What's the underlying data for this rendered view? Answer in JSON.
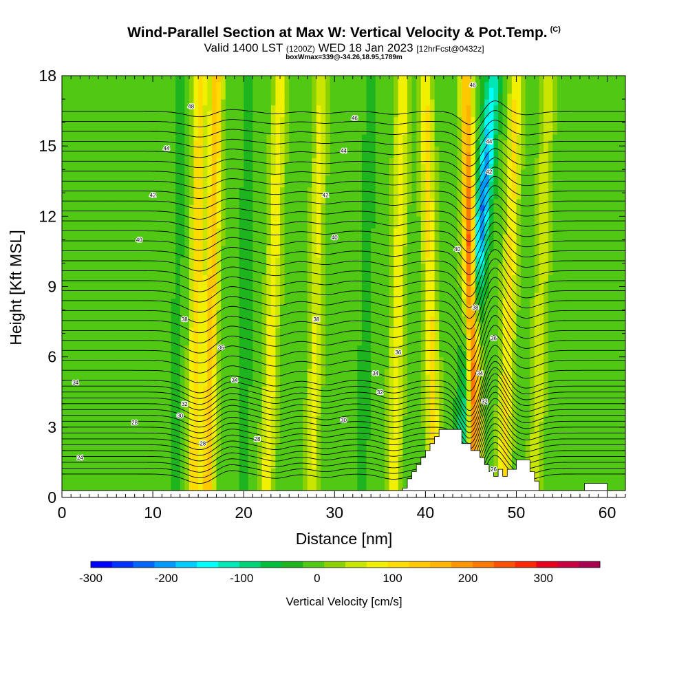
{
  "header": {
    "title": "Wind-Parallel Section at Max W: Vertical Velocity & Pot.Temp.",
    "copyright": "(C)",
    "valid_main": "Valid 1400 LST",
    "valid_utc": "(1200Z)",
    "valid_date": "WED 18 Jan 2023",
    "forecast": "[12hrFcst@0432z]",
    "box_info": "boxWmax=339@-34.26,18.95,1789m"
  },
  "chart_data": {
    "type": "heatmap",
    "xlabel": "Distance [nm]",
    "ylabel": "Height [Kft MSL]",
    "xlim": [
      0,
      62
    ],
    "ylim": [
      0,
      18
    ],
    "x_ticks": [
      0,
      10,
      20,
      30,
      40,
      50,
      60
    ],
    "y_ticks": [
      0,
      3,
      6,
      9,
      12,
      15,
      18
    ],
    "colorbar": {
      "label": "Vertical Velocity [cm/s]",
      "range": [
        -300,
        375
      ],
      "ticks": [
        -300,
        -200,
        -100,
        0,
        100,
        200,
        300
      ],
      "colors": [
        "#0000ff",
        "#0033ff",
        "#0066ff",
        "#0099ff",
        "#00ccff",
        "#00ffff",
        "#00e6b4",
        "#00d278",
        "#00be3c",
        "#1eb41e",
        "#50c814",
        "#8cd200",
        "#c8e600",
        "#f0f000",
        "#ffdc00",
        "#ffc800",
        "#ffb400",
        "#ff9600",
        "#ff7800",
        "#ff5000",
        "#ff2800",
        "#e6001e",
        "#c8003c",
        "#aa0050"
      ]
    },
    "vertical_velocity_bands": [
      {
        "x_bottom": 16.0,
        "x_top": 17.0,
        "peak_cm_s": 140,
        "sign": "up"
      },
      {
        "x_bottom": 14.5,
        "x_top": 15.2,
        "peak_cm_s": 120,
        "sign": "up"
      },
      {
        "x_bottom": 22.5,
        "x_top": 24.0,
        "peak_cm_s": 90,
        "sign": "up"
      },
      {
        "x_bottom": 27.5,
        "x_top": 28.5,
        "peak_cm_s": 70,
        "sign": "up"
      },
      {
        "x_bottom": 36.5,
        "x_top": 37.5,
        "peak_cm_s": 90,
        "sign": "up"
      },
      {
        "x_bottom": 41.0,
        "x_top": 40.0,
        "peak_cm_s": 100,
        "sign": "up"
      },
      {
        "x_bottom": 45.5,
        "x_top": 44.5,
        "peak_cm_s": 339,
        "sign": "up"
      },
      {
        "x_bottom": 43.5,
        "x_top": 47.5,
        "peak_cm_s": -220,
        "sign": "down"
      },
      {
        "x_bottom": 48.5,
        "x_top": 50.0,
        "peak_cm_s": 100,
        "sign": "up"
      },
      {
        "x_bottom": 52.0,
        "x_top": 53.5,
        "peak_cm_s": 60,
        "sign": "up"
      },
      {
        "x_bottom": 33.0,
        "x_top": 34.0,
        "peak_cm_s": -30,
        "sign": "down"
      },
      {
        "x_bottom": 20.0,
        "x_top": 20.5,
        "peak_cm_s": -30,
        "sign": "down"
      },
      {
        "x_bottom": 12.5,
        "x_top": 13.0,
        "peak_cm_s": -25,
        "sign": "down"
      }
    ],
    "terrain": [
      [
        37.5,
        0.0
      ],
      [
        37.5,
        0.4
      ],
      [
        38.0,
        0.4
      ],
      [
        38.0,
        0.8
      ],
      [
        38.5,
        0.8
      ],
      [
        38.5,
        1.1
      ],
      [
        39.0,
        1.1
      ],
      [
        39.0,
        1.4
      ],
      [
        39.5,
        1.4
      ],
      [
        39.5,
        1.7
      ],
      [
        40.0,
        1.7
      ],
      [
        40.0,
        2.0
      ],
      [
        40.5,
        2.0
      ],
      [
        40.5,
        2.3
      ],
      [
        41.0,
        2.3
      ],
      [
        41.0,
        2.6
      ],
      [
        41.5,
        2.6
      ],
      [
        41.5,
        2.9
      ],
      [
        44.0,
        2.9
      ],
      [
        44.0,
        2.3
      ],
      [
        45.0,
        2.3
      ],
      [
        45.0,
        2.0
      ],
      [
        46.0,
        2.0
      ],
      [
        46.0,
        1.7
      ],
      [
        46.5,
        1.7
      ],
      [
        46.5,
        1.4
      ],
      [
        47.0,
        1.4
      ],
      [
        47.0,
        1.1
      ],
      [
        47.5,
        1.1
      ],
      [
        47.5,
        0.9
      ],
      [
        48.0,
        0.9
      ],
      [
        48.0,
        1.2
      ],
      [
        48.5,
        1.2
      ],
      [
        48.5,
        0.9
      ],
      [
        49.0,
        0.9
      ],
      [
        49.0,
        1.2
      ],
      [
        50.0,
        1.2
      ],
      [
        50.0,
        1.6
      ],
      [
        51.5,
        1.6
      ],
      [
        51.5,
        1.1
      ],
      [
        52.0,
        1.1
      ],
      [
        52.0,
        0.7
      ],
      [
        52.5,
        0.7
      ],
      [
        52.5,
        0.3
      ],
      [
        53.0,
        0.3
      ],
      [
        53.0,
        0.0
      ],
      [
        57.5,
        0.0
      ],
      [
        57.5,
        0.6
      ],
      [
        60.0,
        0.6
      ],
      [
        60.0,
        0.3
      ],
      [
        60.5,
        0.3
      ],
      [
        60.5,
        0.0
      ]
    ],
    "theta_contours": {
      "base": 26,
      "step": 0.5,
      "count": 44,
      "waves": [
        {
          "x": 15.5,
          "amp": -0.6,
          "width": 2.5
        },
        {
          "x": 18.0,
          "amp": 0.35,
          "width": 2.0
        },
        {
          "x": 23.5,
          "amp": -0.25,
          "width": 1.8
        },
        {
          "x": 29.0,
          "amp": -0.2,
          "width": 1.8
        },
        {
          "x": 36.5,
          "amp": -0.3,
          "width": 2.0
        },
        {
          "x": 45.0,
          "amp": -1.4,
          "width": 1.6
        },
        {
          "x": 47.5,
          "amp": 1.2,
          "width": 1.6
        },
        {
          "x": 51.0,
          "amp": -0.35,
          "width": 2.0
        }
      ]
    },
    "theta_labels": [
      {
        "text": "48",
        "x": 14.2,
        "y": 16.7
      },
      {
        "text": "46",
        "x": 32.2,
        "y": 16.2
      },
      {
        "text": "46",
        "x": 45.2,
        "y": 17.6
      },
      {
        "text": "44",
        "x": 11.5,
        "y": 14.9
      },
      {
        "text": "44",
        "x": 31.0,
        "y": 14.8
      },
      {
        "text": "44",
        "x": 47.0,
        "y": 15.2
      },
      {
        "text": "42",
        "x": 10.0,
        "y": 12.9
      },
      {
        "text": "42",
        "x": 29.0,
        "y": 12.9
      },
      {
        "text": "42",
        "x": 47.0,
        "y": 13.9
      },
      {
        "text": "40",
        "x": 8.5,
        "y": 11.0
      },
      {
        "text": "40",
        "x": 30.0,
        "y": 11.1
      },
      {
        "text": "40",
        "x": 43.5,
        "y": 10.6
      },
      {
        "text": "38",
        "x": 13.5,
        "y": 7.6
      },
      {
        "text": "38",
        "x": 28.0,
        "y": 7.6
      },
      {
        "text": "38",
        "x": 45.5,
        "y": 8.1
      },
      {
        "text": "36",
        "x": 17.5,
        "y": 6.4
      },
      {
        "text": "36",
        "x": 37.0,
        "y": 6.2
      },
      {
        "text": "36",
        "x": 47.5,
        "y": 6.8
      },
      {
        "text": "34",
        "x": 1.5,
        "y": 4.9
      },
      {
        "text": "34",
        "x": 19.0,
        "y": 5.0
      },
      {
        "text": "34",
        "x": 34.5,
        "y": 5.3
      },
      {
        "text": "34",
        "x": 46.0,
        "y": 5.3
      },
      {
        "text": "32",
        "x": 13.5,
        "y": 4.0
      },
      {
        "text": "32",
        "x": 35.0,
        "y": 4.5
      },
      {
        "text": "32",
        "x": 46.5,
        "y": 4.1
      },
      {
        "text": "30",
        "x": 13.0,
        "y": 3.5
      },
      {
        "text": "30",
        "x": 31.0,
        "y": 3.3
      },
      {
        "text": "28",
        "x": 8.0,
        "y": 3.2
      },
      {
        "text": "28",
        "x": 15.5,
        "y": 2.3
      },
      {
        "text": "28",
        "x": 21.5,
        "y": 2.5
      },
      {
        "text": "26",
        "x": 47.5,
        "y": 1.2
      },
      {
        "text": "24",
        "x": 2.0,
        "y": 1.7
      }
    ]
  }
}
